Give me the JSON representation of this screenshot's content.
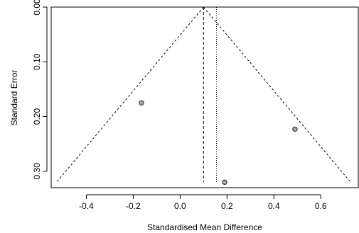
{
  "chart_data": {
    "type": "scatter",
    "title": "",
    "xlabel": "Standardised Mean Difference",
    "ylabel": "Standard Error",
    "xlim": [
      -0.55,
      0.76
    ],
    "ylim": [
      0.0,
      0.33
    ],
    "y_inverted": true,
    "x_ticks": [
      -0.4,
      -0.2,
      0.0,
      0.2,
      0.4,
      0.6
    ],
    "x_tick_labels": [
      "-0.4",
      "-0.2",
      "0.0",
      "0.2",
      "0.4",
      "0.6"
    ],
    "y_ticks": [
      0.0,
      0.1,
      0.2,
      0.3
    ],
    "y_tick_labels": [
      "0.00",
      "0.10",
      "0.20",
      "0.30"
    ],
    "points": [
      {
        "x": -0.165,
        "y": 0.175
      },
      {
        "x": 0.49,
        "y": 0.223
      },
      {
        "x": 0.19,
        "y": 0.32
      }
    ],
    "pooled_effect": 0.1,
    "dotted_reference": 0.155,
    "funnel_max_se": 0.32,
    "funnel_z": 1.96,
    "grid": false,
    "point_color": "#a6a6a6",
    "line_color": "#000000"
  }
}
